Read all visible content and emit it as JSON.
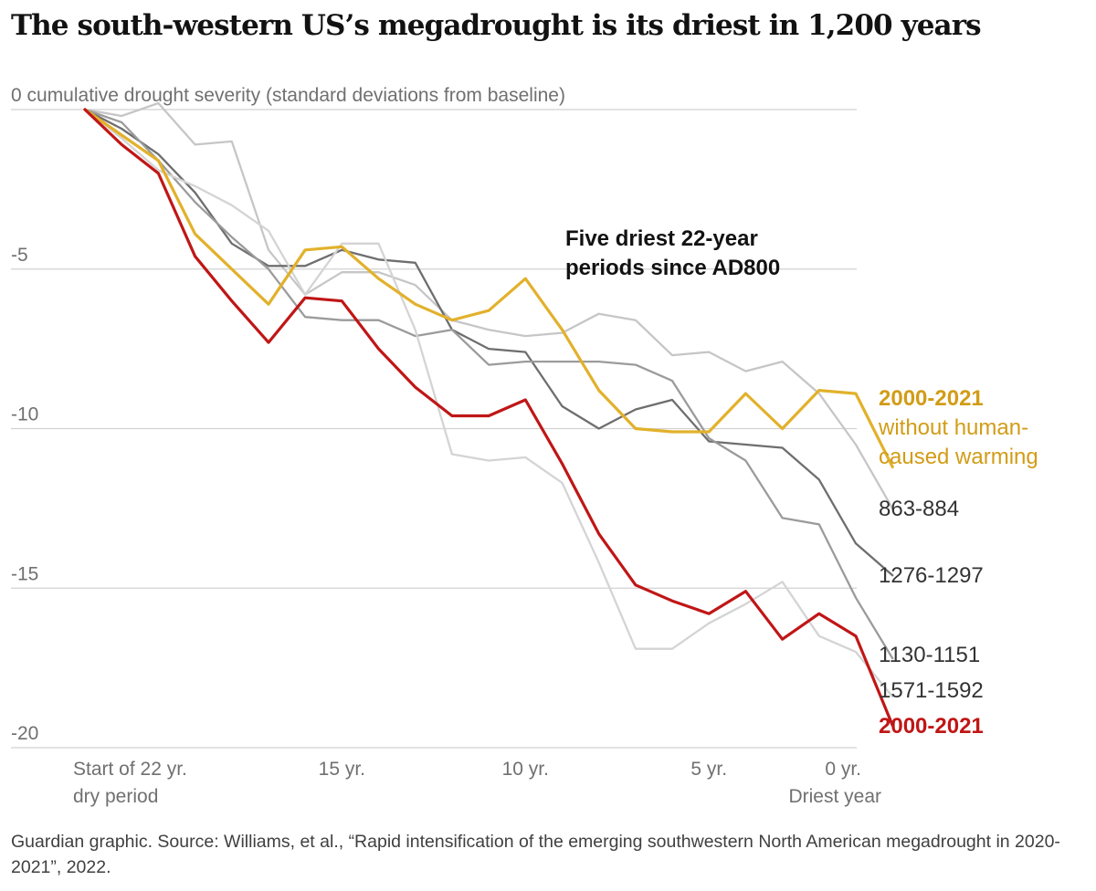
{
  "title": "The south-western US’s megadrought is its driest in 1,200 years",
  "source": "Guardian graphic. Source: Williams, et al., “Rapid intensification of the emerging southwestern North American megadrought in 2020-2021”, 2022.",
  "chart_data": {
    "type": "line",
    "ylabel": "cumulative drought severity (standard deviations from baseline)",
    "ylim": [
      -20,
      0
    ],
    "yticks": [
      {
        "value": 0,
        "label": "0"
      },
      {
        "value": -5,
        "label": "-5"
      },
      {
        "value": -10,
        "label": "-10"
      },
      {
        "value": -15,
        "label": "-15"
      },
      {
        "value": -20,
        "label": "-20"
      }
    ],
    "xlim": [
      0,
      21
    ],
    "xticks": [
      {
        "value": 0,
        "lines": [
          "Start of 22 yr.",
          "dry period"
        ]
      },
      {
        "value": 7,
        "lines": [
          "15 yr."
        ]
      },
      {
        "value": 12,
        "lines": [
          "10 yr."
        ]
      },
      {
        "value": 17,
        "lines": [
          "5 yr."
        ]
      },
      {
        "value": 21,
        "lines": [
          "0 yr.",
          "Driest year"
        ]
      }
    ],
    "annotation": [
      "Five driest 22-year",
      "periods since AD800"
    ],
    "grid": "horizontal",
    "series": [
      {
        "name": "863-884",
        "color": "#c6c6c6",
        "values": [
          0,
          -0.2,
          0.2,
          -1.1,
          -1.0,
          -4.4,
          -5.8,
          -5.1,
          -5.1,
          -5.5,
          -6.6,
          -6.9,
          -7.1,
          -7.0,
          -6.4,
          -6.6,
          -7.7,
          -7.6,
          -8.2,
          -7.9,
          -8.9,
          -10.5,
          -12.5
        ]
      },
      {
        "name": "1276-1297",
        "color": "#6e6e6e",
        "values": [
          0,
          -0.6,
          -1.4,
          -2.6,
          -4.2,
          -4.9,
          -4.9,
          -4.4,
          -4.7,
          -4.8,
          -6.9,
          -7.5,
          -7.6,
          -9.3,
          -10.0,
          -9.4,
          -9.1,
          -10.4,
          -10.5,
          -10.6,
          -11.6,
          -13.6,
          -14.6
        ]
      },
      {
        "name": "1130-1151",
        "color": "#9b9b9b",
        "values": [
          0,
          -0.4,
          -1.6,
          -2.9,
          -4.0,
          -5.0,
          -6.5,
          -6.6,
          -6.6,
          -7.1,
          -6.9,
          -8.0,
          -7.9,
          -7.9,
          -7.9,
          -8.0,
          -8.5,
          -10.3,
          -11.0,
          -12.8,
          -13.0,
          -15.3,
          -17.2
        ]
      },
      {
        "name": "1571-1592",
        "color": "#d4d4d4",
        "values": [
          0,
          -0.9,
          -1.9,
          -2.4,
          -3.0,
          -3.8,
          -5.8,
          -4.2,
          -4.2,
          -6.9,
          -10.8,
          -11.0,
          -10.9,
          -11.7,
          -14.2,
          -16.9,
          -16.9,
          -16.1,
          -15.5,
          -14.8,
          -16.5,
          -17.0,
          -18.4
        ]
      },
      {
        "name": "2000-2021",
        "label_lines": [
          "2000-2021",
          "without human-",
          "caused warming"
        ],
        "color": "#e2b12b",
        "values": [
          0,
          -0.8,
          -1.6,
          -3.9,
          -5.0,
          -6.1,
          -4.4,
          -4.3,
          -5.3,
          -6.1,
          -6.6,
          -6.3,
          -5.3,
          -6.9,
          -8.8,
          -10.0,
          -10.1,
          -10.1,
          -8.9,
          -10.0,
          -8.8,
          -8.9,
          -11.2
        ]
      },
      {
        "name": "2000-2021",
        "color": "#c01616",
        "values": [
          0,
          -1.1,
          -2.0,
          -4.6,
          -6.0,
          -7.3,
          -5.9,
          -6.0,
          -7.5,
          -8.7,
          -9.6,
          -9.6,
          -9.1,
          -11.1,
          -13.3,
          -14.9,
          -15.4,
          -15.8,
          -15.1,
          -16.6,
          -15.8,
          -16.5,
          -19.3
        ]
      }
    ]
  }
}
